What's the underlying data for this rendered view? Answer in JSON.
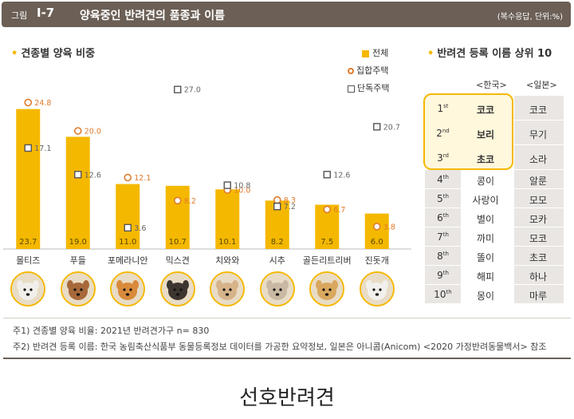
{
  "header": {
    "fig_label": "그림",
    "fig_num": "Ⅰ-7",
    "title": "양육중인 반려견의 품종과 이름",
    "note": "(복수응답, 단위:%)"
  },
  "left_section": {
    "title": "견종별 양육 비중"
  },
  "legend": {
    "all": "전체",
    "apartment": "집합주택",
    "house": "단독주택"
  },
  "colors": {
    "bar": "#f5b800",
    "apartment": "#e07a2b",
    "house": "#555555"
  },
  "chart_data": {
    "type": "bar",
    "categories": [
      "몰티즈",
      "푸들",
      "포메라니안",
      "믹스견",
      "치와와",
      "시추",
      "골든리트리버",
      "진돗개"
    ],
    "series": [
      {
        "name": "전체",
        "values": [
          23.7,
          19.0,
          11.0,
          10.7,
          10.1,
          8.2,
          7.5,
          6.0
        ]
      },
      {
        "name": "집합주택",
        "values": [
          24.8,
          20.0,
          12.1,
          8.2,
          10.0,
          8.3,
          6.7,
          3.8
        ]
      },
      {
        "name": "단독주택",
        "values": [
          17.1,
          12.6,
          3.6,
          27.0,
          10.8,
          7.2,
          12.6,
          20.7
        ]
      }
    ],
    "ylim": [
      0,
      30
    ]
  },
  "dog_icons": [
    "maltese-icon",
    "poodle-icon",
    "pomeranian-icon",
    "mixed-dog-icon",
    "chihuahua-icon",
    "shih-tzu-icon",
    "golden-retriever-icon",
    "jindo-icon"
  ],
  "right_section": {
    "title": "반려견 등록 이름 상위 10",
    "col_korea": "<한국>",
    "col_japan": "<일본>",
    "rows": [
      {
        "num": "1",
        "suf": "st",
        "korea": "코코",
        "japan": "코코"
      },
      {
        "num": "2",
        "suf": "nd",
        "korea": "보리",
        "japan": "무기"
      },
      {
        "num": "3",
        "suf": "rd",
        "korea": "초코",
        "japan": "소라"
      },
      {
        "num": "4",
        "suf": "th",
        "korea": "콩이",
        "japan": "알룬"
      },
      {
        "num": "5",
        "suf": "th",
        "korea": "사랑이",
        "japan": "모모"
      },
      {
        "num": "6",
        "suf": "th",
        "korea": "별이",
        "japan": "모카"
      },
      {
        "num": "7",
        "suf": "th",
        "korea": "까미",
        "japan": "모코"
      },
      {
        "num": "8",
        "suf": "th",
        "korea": "똘이",
        "japan": "초코"
      },
      {
        "num": "9",
        "suf": "th",
        "korea": "해피",
        "japan": "하나"
      },
      {
        "num": "10",
        "suf": "th",
        "korea": "몽이",
        "japan": "마루"
      }
    ]
  },
  "footnotes": [
    "주1) 견종별 양육 비율: 2021년 반려견가구 n= 830",
    "주2) 반려견 등록 이름: 한국 농림축산식품부 동물등록정보 데이터를 가공한 요약정보, 일본은 아니콤(Anicom) <2020 가정반려동물백서> 참조"
  ],
  "caption": "선호반려견"
}
